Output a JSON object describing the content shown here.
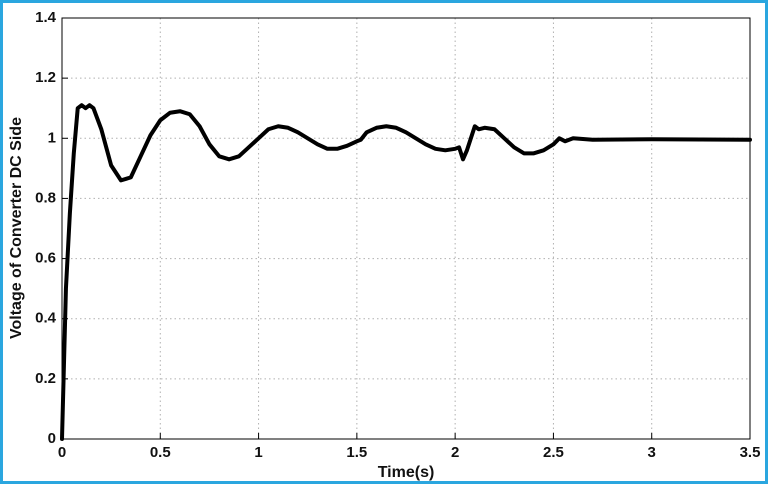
{
  "chart_data": {
    "type": "line",
    "x_label": "Time(s)",
    "y_label": "Voltage of Converter DC Side",
    "x": [
      0,
      0.02,
      0.04,
      0.06,
      0.08,
      0.1,
      0.12,
      0.14,
      0.16,
      0.2,
      0.25,
      0.3,
      0.35,
      0.4,
      0.45,
      0.5,
      0.55,
      0.6,
      0.65,
      0.7,
      0.75,
      0.8,
      0.85,
      0.9,
      0.95,
      1.0,
      1.05,
      1.1,
      1.15,
      1.2,
      1.25,
      1.3,
      1.35,
      1.4,
      1.45,
      1.5,
      1.52,
      1.55,
      1.6,
      1.65,
      1.7,
      1.75,
      1.8,
      1.85,
      1.9,
      1.95,
      2.0,
      2.02,
      2.04,
      2.06,
      2.08,
      2.1,
      2.12,
      2.15,
      2.2,
      2.25,
      2.3,
      2.35,
      2.4,
      2.45,
      2.5,
      2.53,
      2.56,
      2.6,
      2.7,
      3.0,
      3.5
    ],
    "values": [
      0,
      0.5,
      0.75,
      0.95,
      1.1,
      1.11,
      1.1,
      1.11,
      1.1,
      1.03,
      0.91,
      0.86,
      0.87,
      0.94,
      1.01,
      1.06,
      1.085,
      1.09,
      1.08,
      1.04,
      0.98,
      0.94,
      0.93,
      0.94,
      0.97,
      1.0,
      1.03,
      1.04,
      1.035,
      1.02,
      1.0,
      0.98,
      0.965,
      0.965,
      0.975,
      0.99,
      0.995,
      1.02,
      1.035,
      1.04,
      1.035,
      1.02,
      1.0,
      0.98,
      0.965,
      0.96,
      0.965,
      0.97,
      0.93,
      0.96,
      1.0,
      1.04,
      1.03,
      1.035,
      1.03,
      1.0,
      0.97,
      0.95,
      0.95,
      0.96,
      0.98,
      1.0,
      0.99,
      1.0,
      0.995,
      0.997,
      0.995
    ],
    "color": "#000000",
    "xlim": [
      0,
      3.5
    ],
    "xticks": [
      0,
      0.5,
      1,
      1.5,
      2,
      2.5,
      3,
      3.5
    ],
    "ylim": [
      0,
      1.4
    ],
    "yticks": [
      0,
      0.2,
      0.4,
      0.6,
      0.8,
      1,
      1.2,
      1.4
    ],
    "grid": true
  }
}
